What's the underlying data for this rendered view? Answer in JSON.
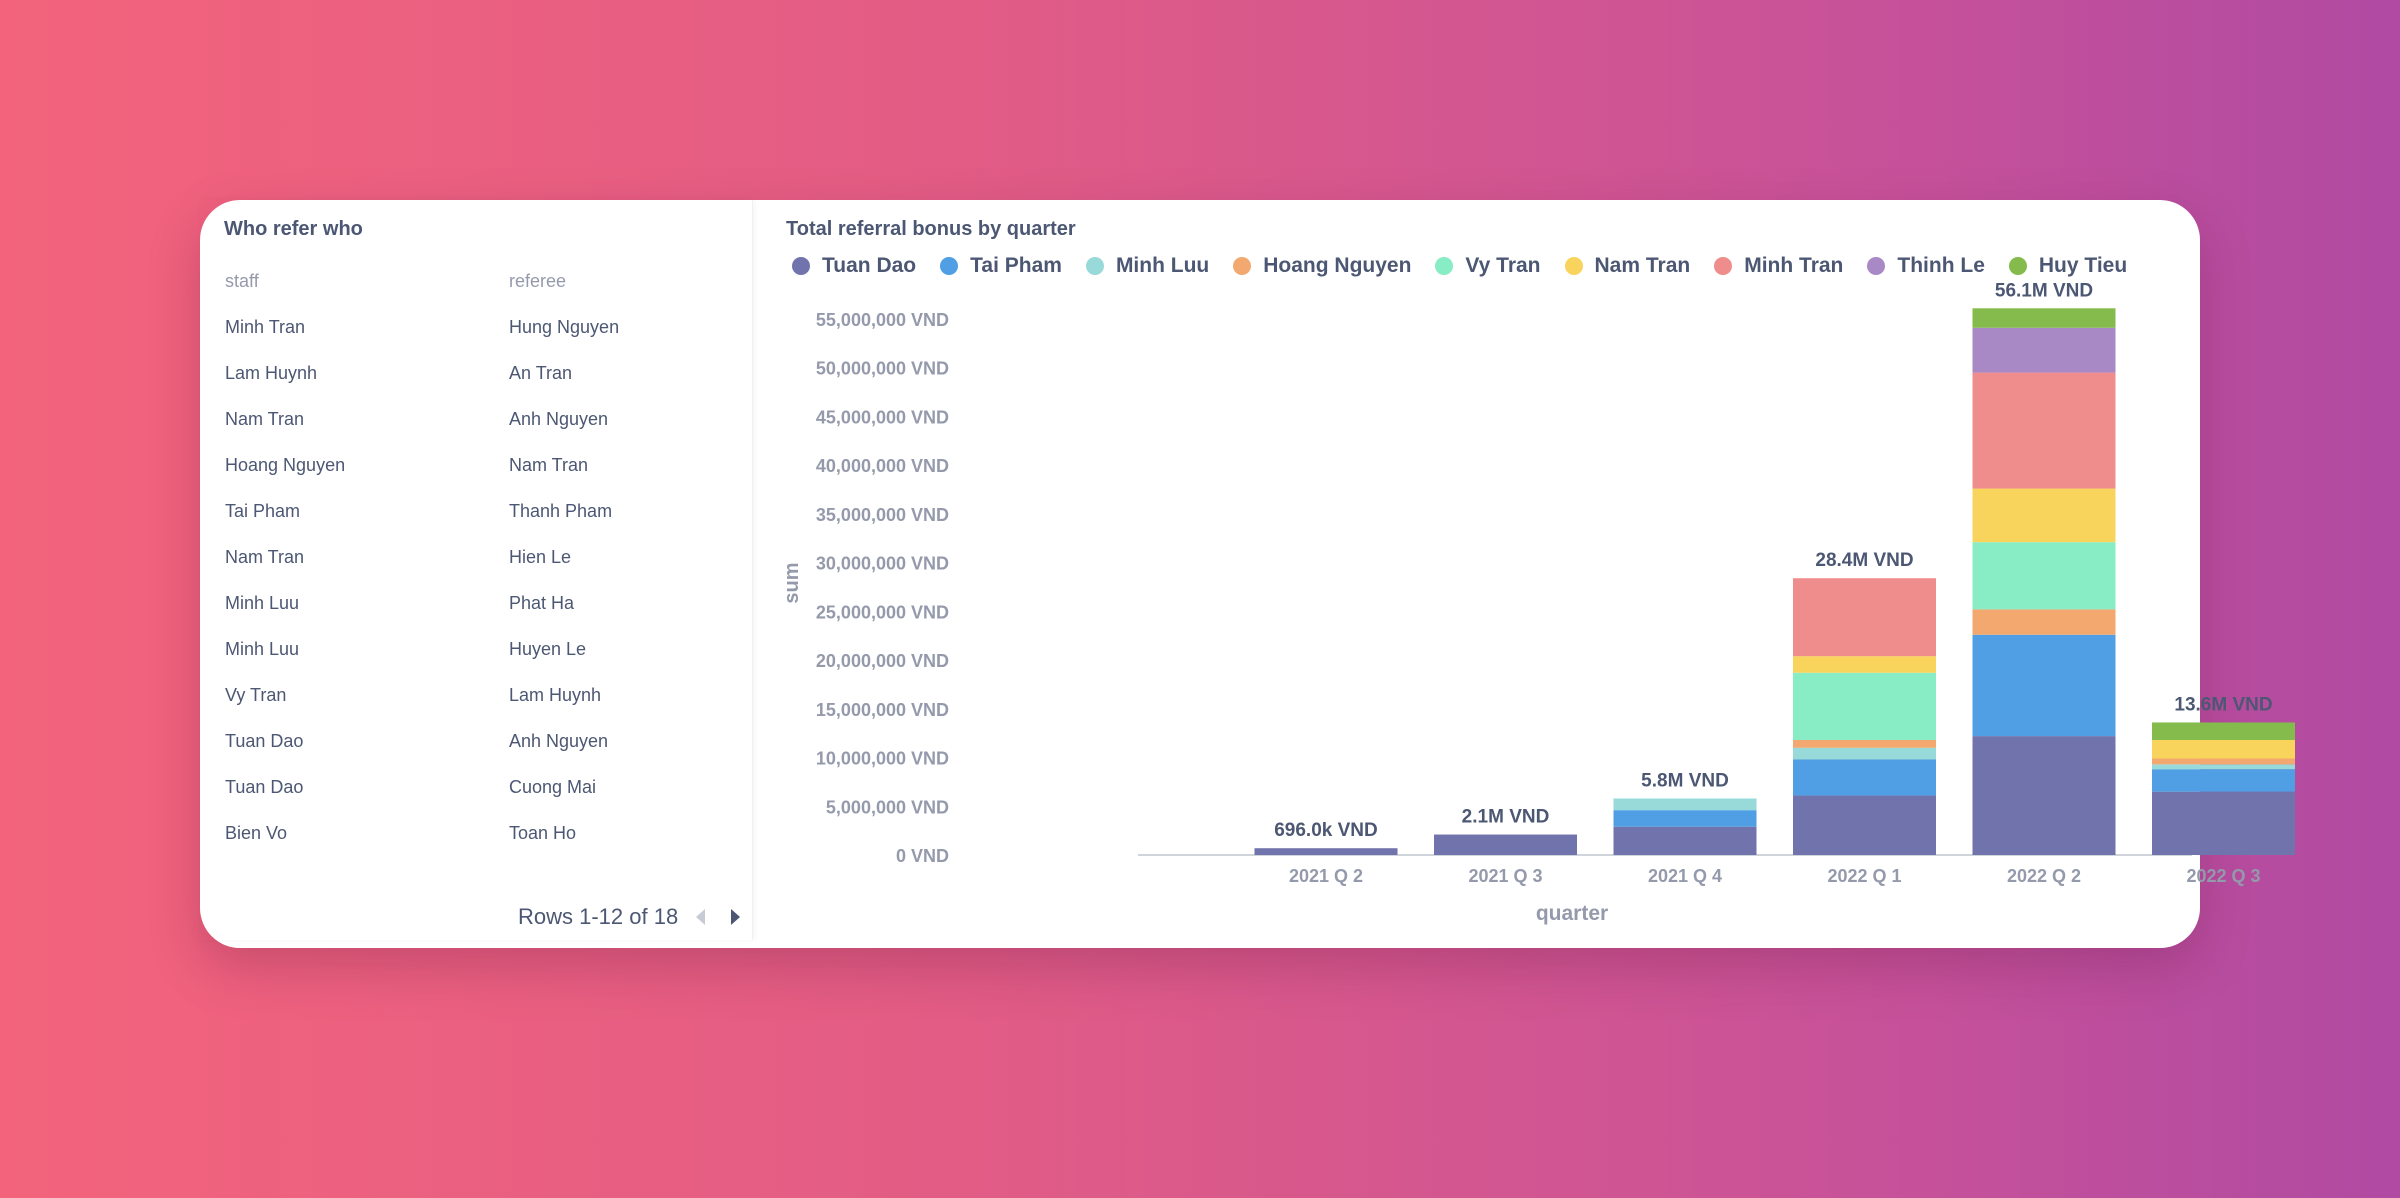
{
  "table": {
    "title": "Who refer who",
    "columns": [
      "staff",
      "referee"
    ],
    "rows": [
      [
        "Minh Tran",
        "Hung Nguyen"
      ],
      [
        "Lam Huynh",
        "An Tran"
      ],
      [
        "Nam Tran",
        "Anh Nguyen"
      ],
      [
        "Hoang Nguyen",
        "Nam Tran"
      ],
      [
        "Tai Pham",
        "Thanh Pham"
      ],
      [
        "Nam Tran",
        "Hien Le"
      ],
      [
        "Minh Luu",
        "Phat Ha"
      ],
      [
        "Minh Luu",
        "Huyen Le"
      ],
      [
        "Vy Tran",
        "Lam Huynh"
      ],
      [
        "Tuan Dao",
        "Anh Nguyen"
      ],
      [
        "Tuan Dao",
        "Cuong Mai"
      ],
      [
        "Bien Vo",
        "Toan Ho"
      ]
    ],
    "pagination": "Rows 1-12 of 18"
  },
  "chart_data": {
    "type": "bar",
    "stacked": true,
    "title": "Total referral bonus by quarter",
    "xlabel": "quarter",
    "ylabel": "sum",
    "ylim": [
      0,
      55000000
    ],
    "y_ticks": [
      "0 VND",
      "5,000,000 VND",
      "10,000,000 VND",
      "15,000,000 VND",
      "20,000,000 VND",
      "25,000,000 VND",
      "30,000,000 VND",
      "35,000,000 VND",
      "40,000,000 VND",
      "45,000,000 VND",
      "50,000,000 VND",
      "55,000,000 VND"
    ],
    "categories": [
      "2021 Q 2",
      "2021 Q 3",
      "2021 Q 4",
      "2022 Q 1",
      "2022 Q 2",
      "2022 Q 3"
    ],
    "totals_labels": [
      "696.0k VND",
      "2.1M VND",
      "5.8M VND",
      "28.4M VND",
      "56.1M VND",
      "13.6M VND"
    ],
    "legend_position": "top",
    "series": [
      {
        "name": "Tuan Dao",
        "color": "#7173ad",
        "values": [
          696000,
          2100000,
          2900000,
          6100000,
          12200000,
          6500000
        ]
      },
      {
        "name": "Tai Pham",
        "color": "#509ee3",
        "values": [
          0,
          0,
          1700000,
          3700000,
          10400000,
          2300000
        ]
      },
      {
        "name": "Minh Luu",
        "color": "#98d9d9",
        "values": [
          0,
          0,
          1200000,
          1200000,
          0,
          500000
        ]
      },
      {
        "name": "Hoang Nguyen",
        "color": "#f2a86f",
        "values": [
          0,
          0,
          0,
          800000,
          2600000,
          600000
        ]
      },
      {
        "name": "Vy Tran",
        "color": "#88ecc5",
        "values": [
          0,
          0,
          0,
          6900000,
          6900000,
          0
        ]
      },
      {
        "name": "Nam Tran",
        "color": "#f9d45c",
        "values": [
          0,
          0,
          0,
          1700000,
          5500000,
          1900000
        ]
      },
      {
        "name": "Minh Tran",
        "color": "#ef8c8c",
        "values": [
          0,
          0,
          0,
          8000000,
          11900000,
          0
        ]
      },
      {
        "name": "Thinh Le",
        "color": "#a989c5",
        "values": [
          0,
          0,
          0,
          0,
          4600000,
          0
        ]
      },
      {
        "name": "Huy Tieu",
        "color": "#84bb4c",
        "values": [
          0,
          0,
          0,
          0,
          2000000,
          1800000
        ]
      }
    ]
  }
}
